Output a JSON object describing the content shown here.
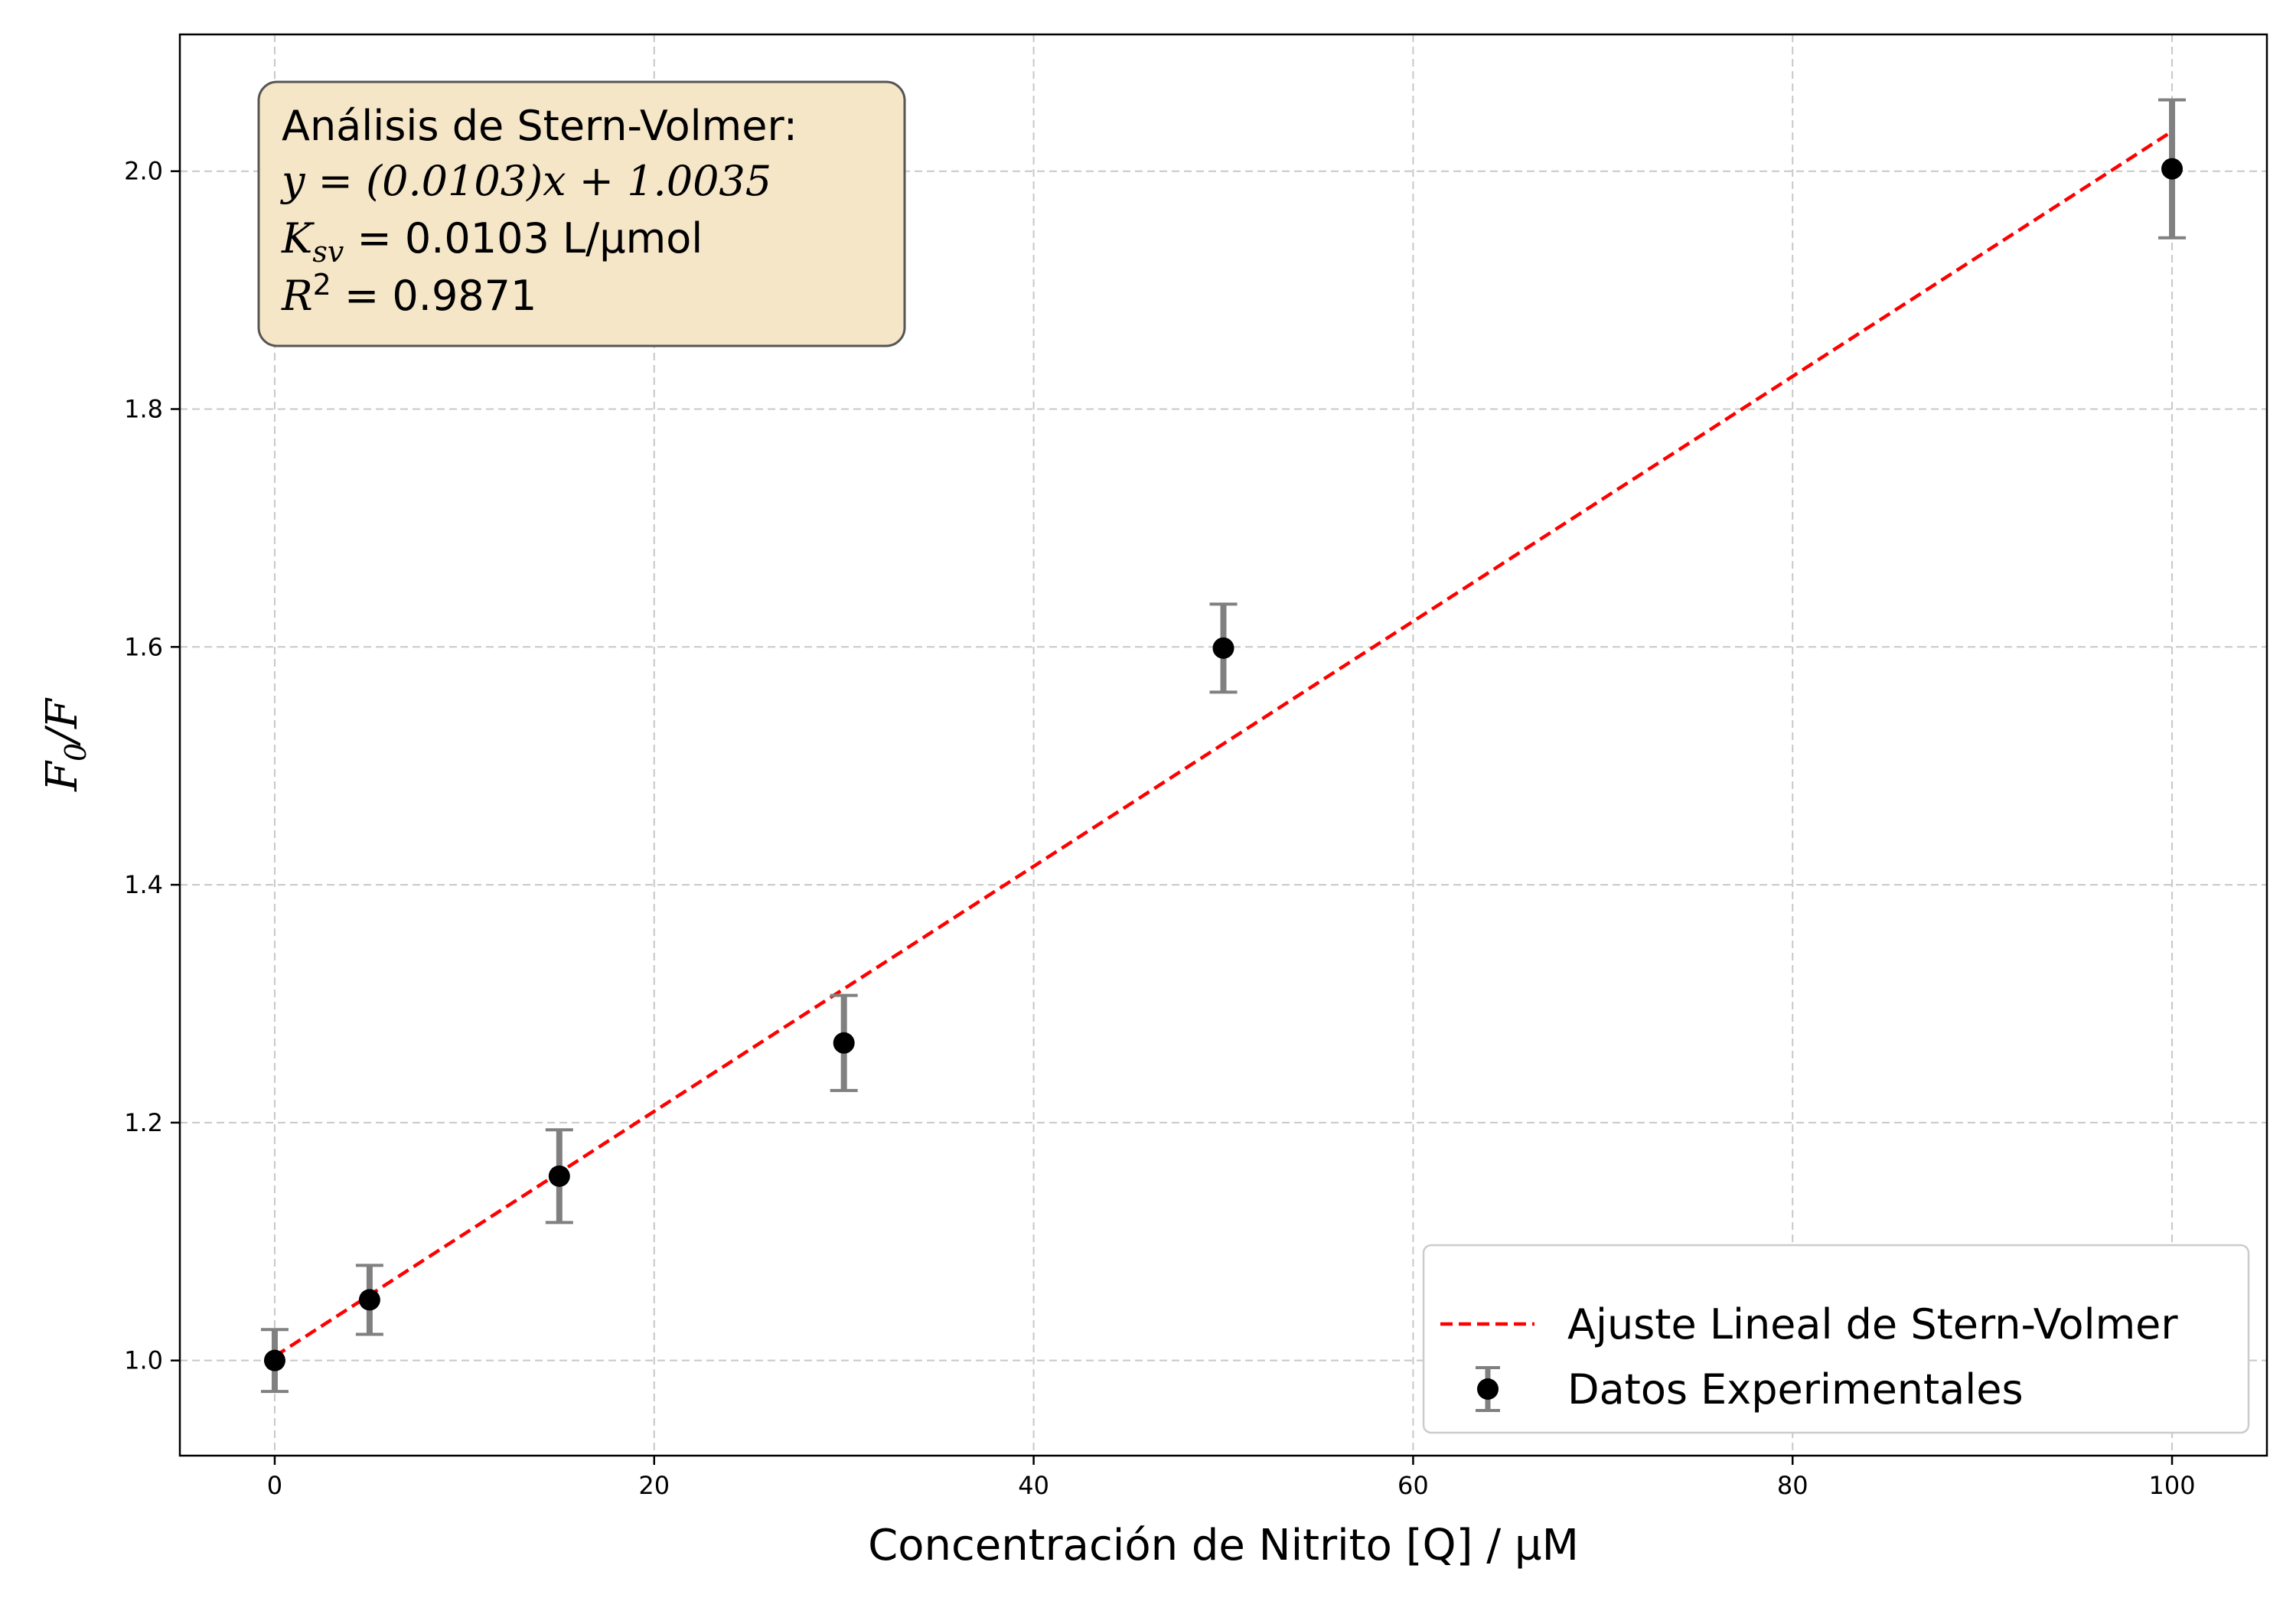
{
  "chart_data": {
    "type": "scatter",
    "xlabel": "Concentración de Nitrito [Q] / µM",
    "ylabel_base": "F",
    "ylabel_sub": "0",
    "ylabel_tail": "/F",
    "xlim": [
      -5,
      105
    ],
    "ylim": [
      0.92,
      2.115
    ],
    "x_ticks": [
      0,
      20,
      40,
      60,
      80,
      100
    ],
    "y_ticks": [
      1.0,
      1.2,
      1.4,
      1.6,
      1.8,
      2.0
    ],
    "x_tick_labels": [
      "0",
      "20",
      "40",
      "60",
      "80",
      "100"
    ],
    "y_tick_labels": [
      "1.0",
      "1.2",
      "1.4",
      "1.6",
      "1.8",
      "2.0"
    ],
    "grid": true,
    "legend_position": "bottom-right",
    "series": [
      {
        "name": "Datos Experimentales",
        "kind": "errorbar",
        "color": "#000000",
        "errcolor": "#808080",
        "x": [
          0,
          5,
          15,
          30,
          50,
          100
        ],
        "y": [
          1.0,
          1.051,
          1.155,
          1.267,
          1.599,
          2.002
        ],
        "yerr": [
          0.026,
          0.029,
          0.039,
          0.04,
          0.037,
          0.058
        ]
      },
      {
        "name": "Ajuste Lineal de Stern-Volmer",
        "kind": "line",
        "style": "dashed",
        "color": "#ff0000",
        "slope": 0.0103,
        "intercept": 1.0035,
        "x": [
          0,
          100
        ]
      }
    ],
    "annotation": {
      "line1": "Análisis de Stern-Volmer:",
      "line2": "y = (0.0103)x + 1.0035",
      "line3_sym": "K",
      "line3_sub": "sv",
      "line3_rest": " = 0.0103 L/µmol",
      "line4_sym": "R",
      "line4_sup": "2",
      "line4_rest": " = 0.9871",
      "box_fill": "#f5e6c8",
      "box_edge": "#555555"
    }
  }
}
